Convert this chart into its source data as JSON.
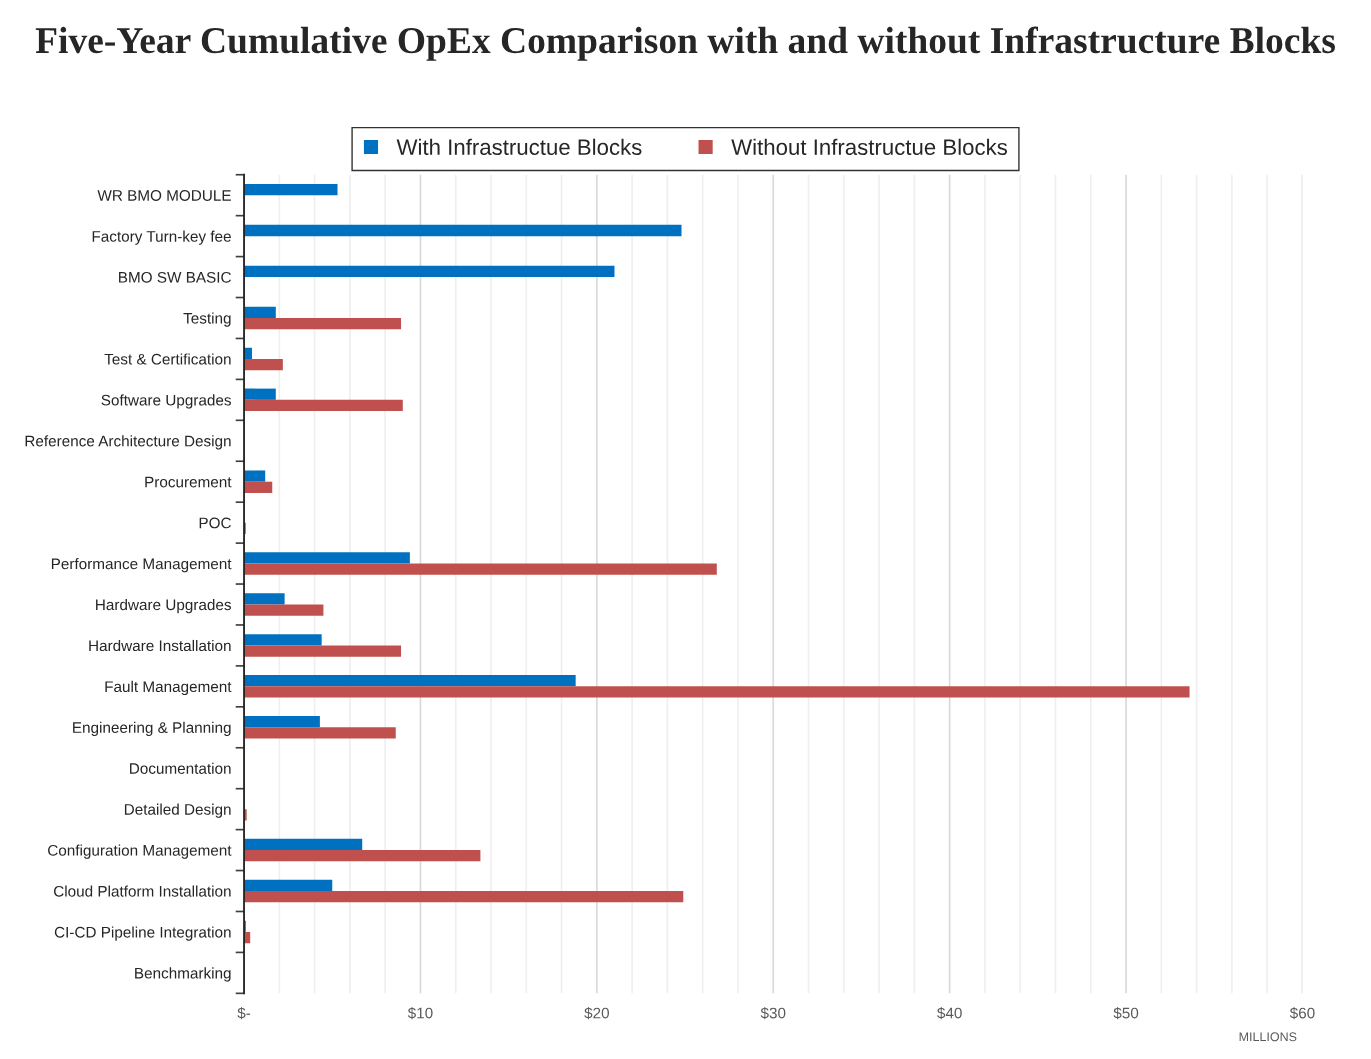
{
  "chart_data": {
    "type": "bar",
    "orientation": "horizontal",
    "title": "Five-Year Cumulative OpEx Comparison with and without Infrastructure Blocks",
    "categories": [
      "WR BMO MODULE",
      "Factory Turn-key fee",
      "BMO SW BASIC",
      "Testing",
      "Test & Certification",
      "Software Upgrades",
      "Reference Architecture Design",
      "Procurement",
      "POC",
      "Performance Management",
      "Hardware Upgrades",
      "Hardware Installation",
      "Fault Management",
      "Engineering & Planning",
      "Documentation",
      "Detailed Design",
      "Configuration Management",
      "Cloud Platform Installation",
      "CI-CD Pipeline Integration",
      "Benchmarking"
    ],
    "series": [
      {
        "name": "With Infrastructue Blocks",
        "color": "#0070c0",
        "values": [
          5.3,
          24.8,
          21.0,
          1.8,
          0.45,
          1.8,
          0,
          1.2,
          0,
          9.4,
          2.3,
          4.4,
          18.8,
          4.3,
          0,
          0,
          6.7,
          5.0,
          0.1,
          0
        ]
      },
      {
        "name": "Without Infrastructue Blocks",
        "color": "#c0504d",
        "values": [
          0,
          0,
          0,
          8.9,
          2.2,
          9.0,
          0,
          1.6,
          0.1,
          26.8,
          4.5,
          8.9,
          53.6,
          8.6,
          0,
          0.15,
          13.4,
          24.9,
          0.35,
          0
        ]
      }
    ],
    "xlim": [
      0,
      60
    ],
    "xticks": [
      {
        "value": 0,
        "label": "$-"
      },
      {
        "value": 2,
        "label": null
      },
      {
        "value": 4,
        "label": null
      },
      {
        "value": 6,
        "label": null
      },
      {
        "value": 8,
        "label": null
      },
      {
        "value": 10,
        "label": "$10"
      },
      {
        "value": 12,
        "label": null
      },
      {
        "value": 14,
        "label": null
      },
      {
        "value": 16,
        "label": null
      },
      {
        "value": 18,
        "label": null
      },
      {
        "value": 20,
        "label": "$20"
      },
      {
        "value": 22,
        "label": null
      },
      {
        "value": 24,
        "label": null
      },
      {
        "value": 26,
        "label": null
      },
      {
        "value": 28,
        "label": null
      },
      {
        "value": 30,
        "label": "$30"
      },
      {
        "value": 32,
        "label": null
      },
      {
        "value": 34,
        "label": null
      },
      {
        "value": 36,
        "label": null
      },
      {
        "value": 38,
        "label": null
      },
      {
        "value": 40,
        "label": "$40"
      },
      {
        "value": 42,
        "label": null
      },
      {
        "value": 44,
        "label": null
      },
      {
        "value": 46,
        "label": null
      },
      {
        "value": 48,
        "label": null
      },
      {
        "value": 50,
        "label": "$50"
      },
      {
        "value": 52,
        "label": null
      },
      {
        "value": 54,
        "label": null
      },
      {
        "value": 56,
        "label": null
      },
      {
        "value": 58,
        "label": null
      },
      {
        "value": 60,
        "label": "$60"
      }
    ],
    "grid": "x",
    "legend": "top",
    "annotations": [
      "MILLIONS"
    ]
  }
}
